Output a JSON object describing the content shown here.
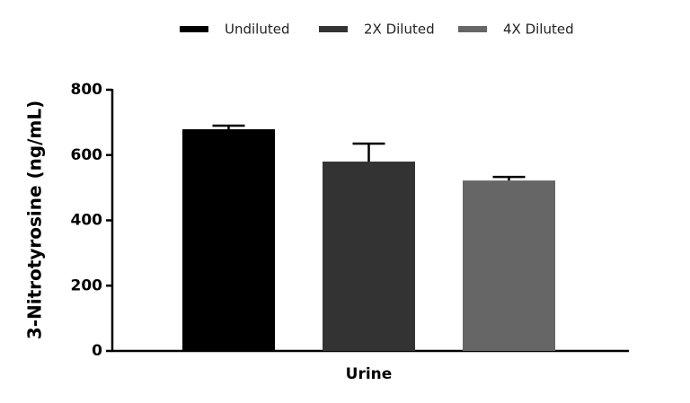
{
  "chart_data": {
    "type": "bar",
    "y_label": "3-Nitrotyrosine (ng/mL)",
    "categories": [
      "Urine"
    ],
    "series": [
      {
        "name": "Undiluted",
        "color": "#000000",
        "values": [
          679
        ],
        "errors": [
          11
        ]
      },
      {
        "name": "2X Diluted",
        "color": "#333333",
        "values": [
          580
        ],
        "errors": [
          55
        ]
      },
      {
        "name": "4X Diluted",
        "color": "#666666",
        "values": [
          522
        ],
        "errors": [
          11
        ]
      }
    ],
    "ylim": [
      0,
      800
    ],
    "yticks": [
      0,
      200,
      400,
      600,
      800
    ]
  }
}
